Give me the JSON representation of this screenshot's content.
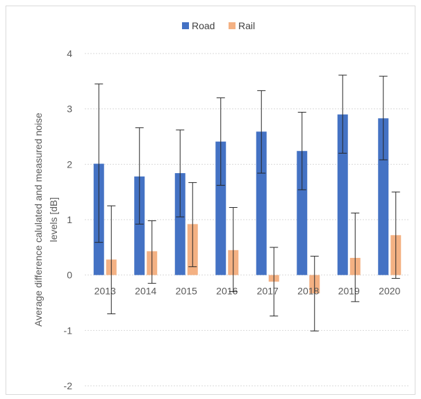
{
  "chart_data": {
    "type": "bar",
    "categories": [
      "2013",
      "2014",
      "2015",
      "2016",
      "2017",
      "2018",
      "2019",
      "2020"
    ],
    "series": [
      {
        "name": "Road",
        "color": "#4472C4",
        "values": [
          2.01,
          1.78,
          1.84,
          2.41,
          2.59,
          2.24,
          2.9,
          2.83
        ],
        "error_low": [
          0.59,
          0.92,
          1.05,
          1.62,
          1.84,
          1.54,
          2.2,
          2.08
        ],
        "error_high": [
          3.45,
          2.66,
          2.62,
          3.2,
          3.33,
          2.94,
          3.61,
          3.59
        ]
      },
      {
        "name": "Rail",
        "color": "#F4B183",
        "values": [
          0.28,
          0.43,
          0.92,
          0.45,
          -0.12,
          -0.33,
          0.31,
          0.72
        ],
        "error_low": [
          -0.7,
          -0.15,
          0.15,
          -0.3,
          -0.74,
          -1.01,
          -0.48,
          -0.06
        ],
        "error_high": [
          1.25,
          0.98,
          1.67,
          1.22,
          0.5,
          0.34,
          1.12,
          1.5
        ]
      }
    ],
    "ylabel": "Average difference calulated and measured noise levels [dB]",
    "xlabel": "",
    "title": "",
    "ylim": [
      -2,
      4
    ],
    "yticks": [
      "-2",
      "-1",
      "0",
      "1",
      "2",
      "3",
      "4"
    ],
    "grid": true,
    "legend_position": "top-center"
  }
}
